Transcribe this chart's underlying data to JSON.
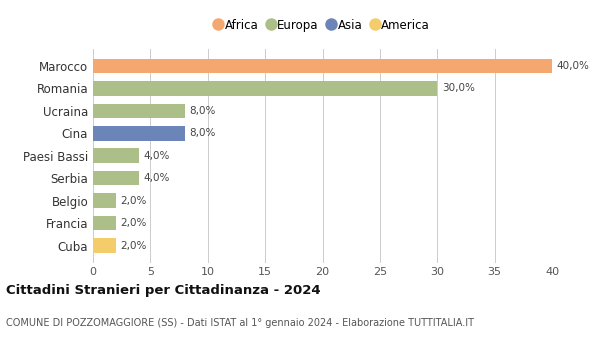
{
  "categories": [
    "Marocco",
    "Romania",
    "Ucraina",
    "Cina",
    "Paesi Bassi",
    "Serbia",
    "Belgio",
    "Francia",
    "Cuba"
  ],
  "values": [
    40.0,
    30.0,
    8.0,
    8.0,
    4.0,
    4.0,
    2.0,
    2.0,
    2.0
  ],
  "colors": [
    "#F4A870",
    "#ADBF88",
    "#ADBF88",
    "#6B85B8",
    "#ADBF88",
    "#ADBF88",
    "#ADBF88",
    "#ADBF88",
    "#F5CC6A"
  ],
  "labels": [
    "40,0%",
    "30,0%",
    "8,0%",
    "8,0%",
    "4,0%",
    "4,0%",
    "2,0%",
    "2,0%",
    "2,0%"
  ],
  "xlim": [
    0,
    40
  ],
  "xticks": [
    0,
    5,
    10,
    15,
    20,
    25,
    30,
    35,
    40
  ],
  "legend": [
    {
      "label": "Africa",
      "color": "#F4A870"
    },
    {
      "label": "Europa",
      "color": "#ADBF88"
    },
    {
      "label": "Asia",
      "color": "#6B85B8"
    },
    {
      "label": "America",
      "color": "#F5CC6A"
    }
  ],
  "title": "Cittadini Stranieri per Cittadinanza - 2024",
  "subtitle": "COMUNE DI POZZOMAGGIORE (SS) - Dati ISTAT al 1° gennaio 2024 - Elaborazione TUTTITALIA.IT",
  "bg_color": "#ffffff",
  "grid_color": "#cccccc",
  "bar_height": 0.65
}
